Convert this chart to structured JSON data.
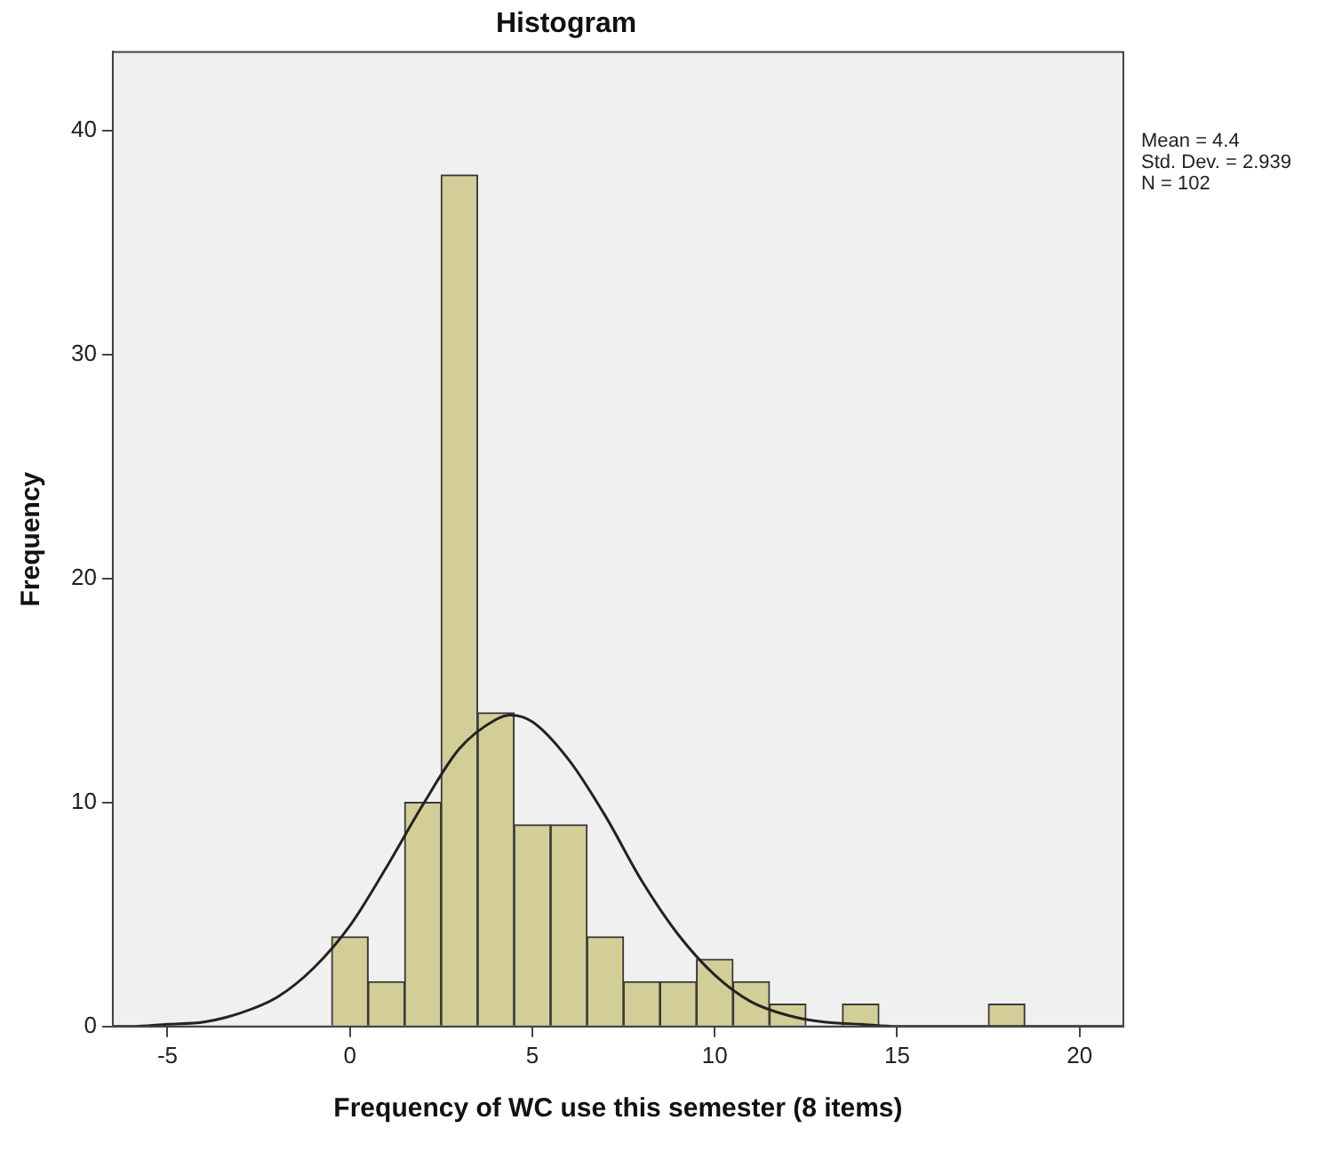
{
  "chart_data": {
    "type": "histogram",
    "title": "Histogram",
    "xlabel": "Frequency of WC use this semester (8 items)",
    "ylabel": "Frequency",
    "bins": [
      -0.5,
      0.5,
      1.5,
      2.5,
      3.5,
      4.5,
      5.5,
      6.5,
      7.5,
      8.5,
      9.5,
      10.5,
      11.5,
      12.5,
      13.5,
      14.5,
      15.5,
      16.5,
      17.5,
      18.5
    ],
    "values": [
      4,
      2,
      10,
      38,
      14,
      9,
      9,
      4,
      2,
      2,
      3,
      2,
      1,
      0,
      1,
      0,
      0,
      0,
      1
    ],
    "color": "#d3ce97",
    "series": [
      {
        "type": "line",
        "color": "#222222",
        "x": [
          -6.5,
          -6,
          -5,
          -4,
          -3,
          -2,
          -1,
          0,
          1,
          2,
          3,
          4,
          4.4,
          5,
          6,
          7,
          8,
          9,
          10,
          11,
          12,
          13,
          14,
          15,
          16,
          18,
          21.2
        ],
        "values": [
          0.0,
          0.0,
          0.1,
          0.2,
          0.6,
          1.3,
          2.6,
          4.5,
          7.1,
          9.9,
          12.4,
          13.7,
          13.9,
          13.6,
          11.9,
          9.4,
          6.5,
          4.1,
          2.3,
          1.1,
          0.5,
          0.2,
          0.1,
          0.0,
          0.0,
          0.0,
          0.0
        ]
      }
    ],
    "xlim": [
      -6.5,
      21.2
    ],
    "ylim": [
      0,
      43.5
    ],
    "xticks": [
      -5,
      0,
      5,
      10,
      15,
      20
    ],
    "yticks": [
      0,
      10,
      20,
      30,
      40
    ],
    "grid": false,
    "legend": false,
    "annotations": [
      "Mean = 4.4",
      "Std. Dev. = 2.939",
      "N = 102"
    ]
  }
}
